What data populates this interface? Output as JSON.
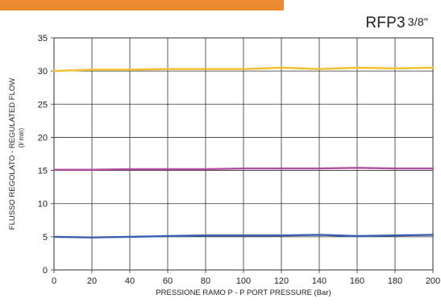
{
  "header": {
    "model": "RFP3",
    "size": "3/8\"",
    "accent_color": "#ea8a2f"
  },
  "chart_data": {
    "type": "line",
    "title": "RFP3 3/8\"",
    "xlabel": "PRESSIONE RAMO P - P PORT PRESSURE (Bar)",
    "ylabel": "FLUSSO REGOLATO - REGULATED FLOW",
    "yunit": "(l/ min)",
    "xlim": [
      0,
      200
    ],
    "ylim": [
      0,
      35
    ],
    "xticks": [
      0,
      20,
      40,
      60,
      80,
      100,
      120,
      140,
      160,
      180,
      200
    ],
    "yticks": [
      0,
      5,
      10,
      15,
      20,
      25,
      30,
      35
    ],
    "grid": true,
    "x": [
      0,
      20,
      40,
      60,
      80,
      100,
      120,
      140,
      160,
      180,
      200
    ],
    "series": [
      {
        "color": "#f2c02e",
        "values": [
          30.0,
          30.2,
          30.2,
          30.3,
          30.3,
          30.3,
          30.5,
          30.3,
          30.5,
          30.4,
          30.5
        ]
      },
      {
        "color": "#b24fa0",
        "values": [
          15.1,
          15.1,
          15.2,
          15.2,
          15.2,
          15.3,
          15.3,
          15.3,
          15.4,
          15.3,
          15.3
        ]
      },
      {
        "color": "#3a5fb0",
        "values": [
          5.0,
          4.9,
          5.0,
          5.1,
          5.2,
          5.2,
          5.2,
          5.3,
          5.1,
          5.2,
          5.3
        ]
      }
    ]
  }
}
